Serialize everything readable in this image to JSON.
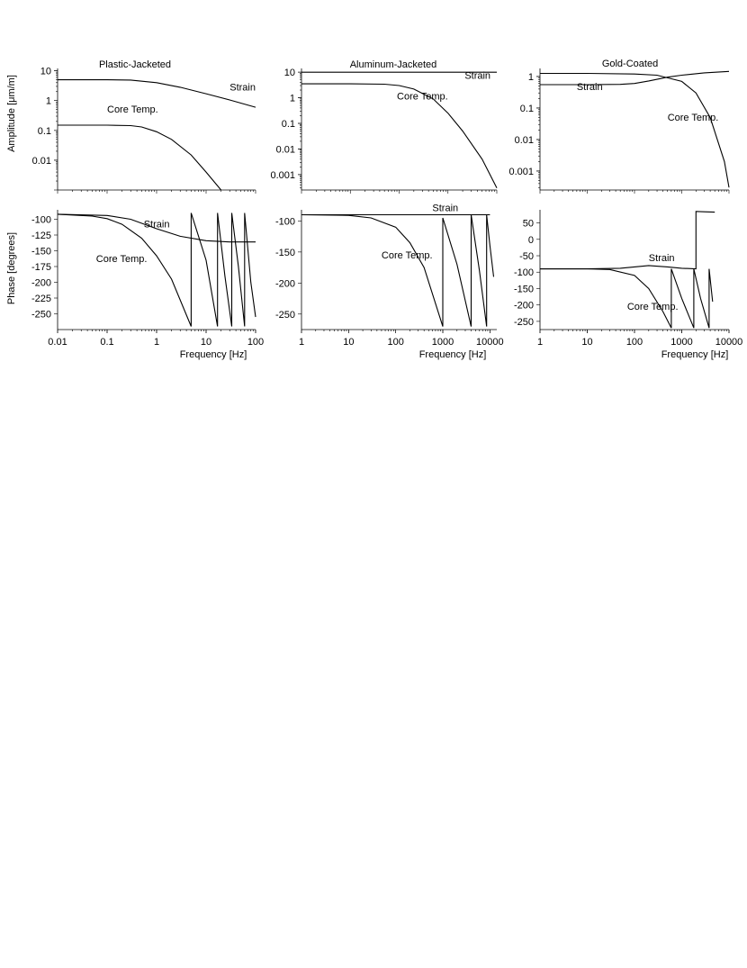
{
  "figure": {
    "amplitude_ylabel": "Amplitude [μm/m]",
    "phase_ylabel": "Phase [degrees]",
    "xlabel": "Frequency [Hz]"
  },
  "chart_data": [
    {
      "id": "plastic_amp",
      "type": "line",
      "title": "Plastic-Jacketed",
      "ylabel": "Amplitude [μm/m]",
      "xscale": "log",
      "yscale": "log",
      "xlim": [
        0.01,
        100
      ],
      "ylim": [
        0.001,
        12
      ],
      "xticks": [],
      "yticks": [
        0.01,
        0.1,
        1,
        10
      ],
      "ytick_labels": [
        "0.01",
        "0.1",
        "1",
        "10"
      ],
      "annotations": [
        {
          "text": "Strain",
          "x": 30,
          "y": 2.2
        },
        {
          "text": "Core Temp.",
          "x": 0.1,
          "y": 0.4
        }
      ],
      "series": [
        {
          "name": "Strain",
          "x": [
            0.01,
            0.1,
            0.3,
            1,
            3,
            10,
            30,
            100
          ],
          "y": [
            5.0,
            5.0,
            4.9,
            4.0,
            2.8,
            1.7,
            1.05,
            0.6
          ]
        },
        {
          "name": "Core Temp.",
          "x": [
            0.01,
            0.1,
            0.3,
            0.5,
            1,
            2,
            5,
            10,
            20
          ],
          "y": [
            0.15,
            0.15,
            0.145,
            0.13,
            0.09,
            0.05,
            0.015,
            0.004,
            0.001
          ]
        }
      ]
    },
    {
      "id": "aluminum_amp",
      "type": "line",
      "title": "Aluminum-Jacketed",
      "xscale": "log",
      "yscale": "log",
      "xlim": [
        1,
        10000
      ],
      "ylim": [
        0.00025,
        14
      ],
      "xticks": [],
      "yticks": [
        0.001,
        0.01,
        0.1,
        1,
        10
      ],
      "ytick_labels": [
        "0.001",
        "0.01",
        "0.1",
        "1",
        "10"
      ],
      "annotations": [
        {
          "text": "Strain",
          "x": 2200,
          "y": 5.5
        },
        {
          "text": "Core Temp.",
          "x": 90,
          "y": 0.85
        }
      ],
      "series": [
        {
          "name": "Strain",
          "x": [
            1,
            10000
          ],
          "y": [
            10,
            10
          ]
        },
        {
          "name": "Core Temp.",
          "x": [
            1,
            10,
            50,
            100,
            200,
            500,
            1000,
            2000,
            5000,
            10000
          ],
          "y": [
            3.5,
            3.5,
            3.4,
            3.0,
            2.2,
            0.9,
            0.25,
            0.05,
            0.004,
            0.0003
          ]
        }
      ]
    },
    {
      "id": "gold_amp",
      "type": "line",
      "title": "Gold-Coated",
      "xscale": "log",
      "yscale": "log",
      "xlim": [
        1,
        10000
      ],
      "ylim": [
        0.00025,
        1.8
      ],
      "xticks": [],
      "yticks": [
        0.001,
        0.01,
        0.1,
        1
      ],
      "ytick_labels": [
        "0.001",
        "0.01",
        "0.1",
        "1"
      ],
      "annotations": [
        {
          "text": "Strain",
          "x": 6,
          "y": 0.37
        },
        {
          "text": "Core Temp.",
          "x": 500,
          "y": 0.04
        }
      ],
      "series": [
        {
          "name": "Strain",
          "x": [
            1,
            10,
            50,
            100,
            200,
            500,
            1000,
            3000,
            10000
          ],
          "y": [
            0.55,
            0.55,
            0.56,
            0.6,
            0.72,
            0.95,
            1.1,
            1.3,
            1.45
          ]
        },
        {
          "name": "Core Temp.",
          "x": [
            1,
            10,
            100,
            300,
            1000,
            2000,
            4000,
            8000,
            10000
          ],
          "y": [
            1.25,
            1.25,
            1.2,
            1.1,
            0.7,
            0.3,
            0.05,
            0.002,
            0.0003
          ]
        }
      ]
    },
    {
      "id": "plastic_phase",
      "type": "line",
      "ylabel": "Phase [degrees]",
      "xlabel": "Frequency [Hz]",
      "xscale": "log",
      "yscale": "linear",
      "xlim": [
        0.01,
        100
      ],
      "ylim": [
        -275,
        -85
      ],
      "xticks": [
        0.01,
        0.1,
        1,
        10,
        100
      ],
      "xtick_labels": [
        "0.01",
        "0.1",
        "1",
        "10",
        "100"
      ],
      "yticks": [
        -100,
        -125,
        -150,
        -175,
        -200,
        -225,
        -250
      ],
      "ytick_labels": [
        "-100",
        "-125",
        "-150",
        "-175",
        "-200",
        "-225",
        "-250"
      ],
      "annotations": [
        {
          "text": "Strain",
          "x": 0.55,
          "y": -113
        },
        {
          "text": "Core Temp.",
          "x": 0.06,
          "y": -168
        }
      ],
      "series": [
        {
          "name": "Strain",
          "x": [
            0.01,
            0.1,
            0.3,
            1,
            3,
            10,
            30,
            100
          ],
          "y": [
            -92,
            -94,
            -100,
            -115,
            -127,
            -134,
            -136,
            -136
          ]
        },
        {
          "name": "Core Temp.",
          "x": [
            0.01,
            0.05,
            0.1,
            0.2,
            0.5,
            1,
            2,
            5,
            5,
            10,
            17,
            17,
            24,
            33,
            33,
            45,
            60,
            60,
            80,
            100
          ],
          "y": [
            -92,
            -95,
            -99,
            -108,
            -130,
            -158,
            -195,
            -270,
            -90,
            -165,
            -270,
            -90,
            -190,
            -270,
            -90,
            -175,
            -270,
            -90,
            -200,
            -255
          ]
        }
      ]
    },
    {
      "id": "aluminum_phase",
      "type": "line",
      "xlabel": "Frequency [Hz]",
      "xscale": "log",
      "yscale": "linear",
      "xlim": [
        1,
        14000
      ],
      "ylim": [
        -275,
        -82
      ],
      "xticks": [
        1,
        10,
        100,
        1000,
        10000
      ],
      "xtick_labels": [
        "1",
        "10",
        "100",
        "1000",
        "10000"
      ],
      "yticks": [
        -100,
        -150,
        -200,
        -250
      ],
      "ytick_labels": [
        "-100",
        "-150",
        "-200",
        "-250"
      ],
      "annotations": [
        {
          "text": "Strain",
          "x": 600,
          "y": -84
        },
        {
          "text": "Core Temp.",
          "x": 50,
          "y": -160
        }
      ],
      "series": [
        {
          "name": "Strain",
          "x": [
            1,
            10000
          ],
          "y": [
            -90,
            -90
          ]
        },
        {
          "name": "Core Temp.",
          "x": [
            1,
            10,
            30,
            100,
            200,
            400,
            1000,
            1000,
            2000,
            4000,
            4000,
            6000,
            8500,
            8500,
            10000,
            12000
          ],
          "y": [
            -90,
            -91,
            -95,
            -110,
            -135,
            -175,
            -270,
            -95,
            -170,
            -270,
            -90,
            -180,
            -270,
            -90,
            -140,
            -190
          ]
        }
      ]
    },
    {
      "id": "gold_phase",
      "type": "line",
      "xlabel": "Frequency [Hz]",
      "xscale": "log",
      "yscale": "linear",
      "xlim": [
        1,
        10000
      ],
      "ylim": [
        -275,
        90
      ],
      "xticks": [
        1,
        10,
        100,
        1000,
        10000
      ],
      "xtick_labels": [
        "1",
        "10",
        "100",
        "1000",
        "10000"
      ],
      "yticks": [
        50,
        0,
        -50,
        -100,
        -150,
        -200,
        -250
      ],
      "ytick_labels": [
        "50",
        "0",
        "-50",
        "-100",
        "-150",
        "-200",
        "-250"
      ],
      "annotations": [
        {
          "text": "Strain",
          "x": 200,
          "y": -67
        },
        {
          "text": "Core Temp.",
          "x": 70,
          "y": -215
        }
      ],
      "series": [
        {
          "name": "Strain",
          "x": [
            1,
            10,
            50,
            100,
            200,
            500,
            1000,
            2000,
            2000,
            3000,
            5000
          ],
          "y": [
            -90,
            -90,
            -88,
            -84,
            -80,
            -84,
            -88,
            -90,
            85,
            84,
            83
          ]
        },
        {
          "name": "Core Temp.",
          "x": [
            1,
            10,
            30,
            100,
            200,
            400,
            600,
            600,
            1000,
            1800,
            1800,
            2500,
            3800,
            3800,
            4500
          ],
          "y": [
            -90,
            -90,
            -92,
            -110,
            -150,
            -220,
            -270,
            -90,
            -180,
            -270,
            -90,
            -180,
            -270,
            -90,
            -190
          ]
        }
      ]
    }
  ]
}
